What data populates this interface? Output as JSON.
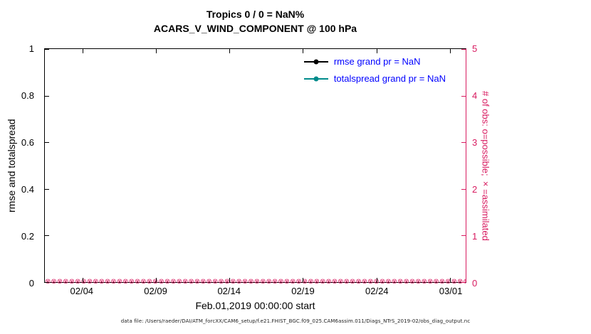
{
  "title": {
    "line1": "Tropics 0 / 0 = NaN%",
    "line2": "ACARS_V_WIND_COMPONENT @ 100 hPa"
  },
  "legend": {
    "position": "top-right-inside",
    "text_color": "#0000ff",
    "entries": [
      {
        "label": "rmse grand pr = NaN",
        "color": "#000000",
        "marker": "filled-circle"
      },
      {
        "label": "totalspread grand pr = NaN",
        "color": "#008b8b",
        "marker": "filled-circle"
      }
    ]
  },
  "axes": {
    "xlabel": "Feb.01,2019 00:00:00 start",
    "ylabel_left": "rmse and totalspread",
    "ylabel_right": "# of obs: o=possible; ×=assimilated",
    "right_axis_color": "#d81b60",
    "left_axis_color": "#000000"
  },
  "markers": {
    "glyph": "⊗",
    "count": 84,
    "color": "#d81b60",
    "meaning": "possible (o) and assimilated (×) obs counts, all 0"
  },
  "footer": "data file: /Users/raeder/DAI/ATM_forcXX/CAM6_setup/f.e21.FHIST_BGC.f09_025.CAM6assim.011/Diags_NTrS_2019-02/obs_diag_output.nc",
  "chart_data": {
    "type": "line",
    "title": "Tropics 0 / 0 = NaN%",
    "subtitle": "ACARS_V_WIND_COMPONENT @ 100 hPa",
    "xlabel": "Feb.01,2019 00:00:00 start",
    "ylabel_left": "rmse and totalspread",
    "ylabel_right": "# of obs: o=possible; ×=assimilated",
    "x_range_note": "daily-ish times from 02/01/2019 to 03/01/2019",
    "xticklabels": [
      "02/04",
      "02/09",
      "02/14",
      "02/19",
      "02/24",
      "03/01"
    ],
    "yticks_left": [
      "1",
      "0.8",
      "0.6",
      "0.4",
      "0.2",
      "0"
    ],
    "yticks_right": [
      "5",
      "4",
      "3",
      "2",
      "1",
      "0"
    ],
    "ylim_left": [
      0,
      1
    ],
    "ylim_right": [
      0,
      5
    ],
    "grid": false,
    "series": [
      {
        "name": "rmse",
        "grand_mean": "NaN",
        "color": "#000000",
        "values": []
      },
      {
        "name": "totalspread",
        "grand_mean": "NaN",
        "color": "#008b8b",
        "values": []
      },
      {
        "name": "obs_possible",
        "marker": "o",
        "color": "#d81b60",
        "constant_value": 0
      },
      {
        "name": "obs_assimilated",
        "marker": "x",
        "color": "#d81b60",
        "constant_value": 0
      }
    ]
  }
}
